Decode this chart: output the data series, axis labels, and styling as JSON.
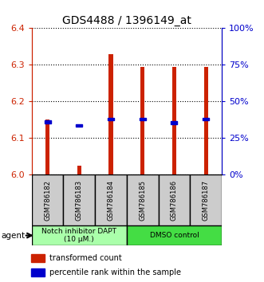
{
  "title": "GDS4488 / 1396149_at",
  "samples": [
    "GSM786182",
    "GSM786183",
    "GSM786184",
    "GSM786185",
    "GSM786186",
    "GSM786187"
  ],
  "bar_bottoms": [
    6.0,
    6.0,
    6.0,
    6.0,
    6.0,
    6.0
  ],
  "bar_tops": [
    6.15,
    6.025,
    6.33,
    6.295,
    6.295,
    6.295
  ],
  "blue_y": [
    6.145,
    6.135,
    6.152,
    6.152,
    6.143,
    6.152
  ],
  "ylim": [
    6.0,
    6.4
  ],
  "yticks_left": [
    6.0,
    6.1,
    6.2,
    6.3,
    6.4
  ],
  "yticks_right": [
    0,
    25,
    50,
    75,
    100
  ],
  "ytick_right_labels": [
    "0%",
    "25%",
    "50%",
    "75%",
    "100%"
  ],
  "bar_color": "#cc2200",
  "blue_color": "#0000cc",
  "group1_label": "Notch inhibitor DAPT\n(10 μM.)",
  "group2_label": "DMSO control",
  "group1_color": "#aaffaa",
  "group2_color": "#44dd44",
  "agent_label": "agent",
  "legend1": "transformed count",
  "legend2": "percentile rank within the sample",
  "grid_color": "#000000",
  "bar_width": 0.4
}
